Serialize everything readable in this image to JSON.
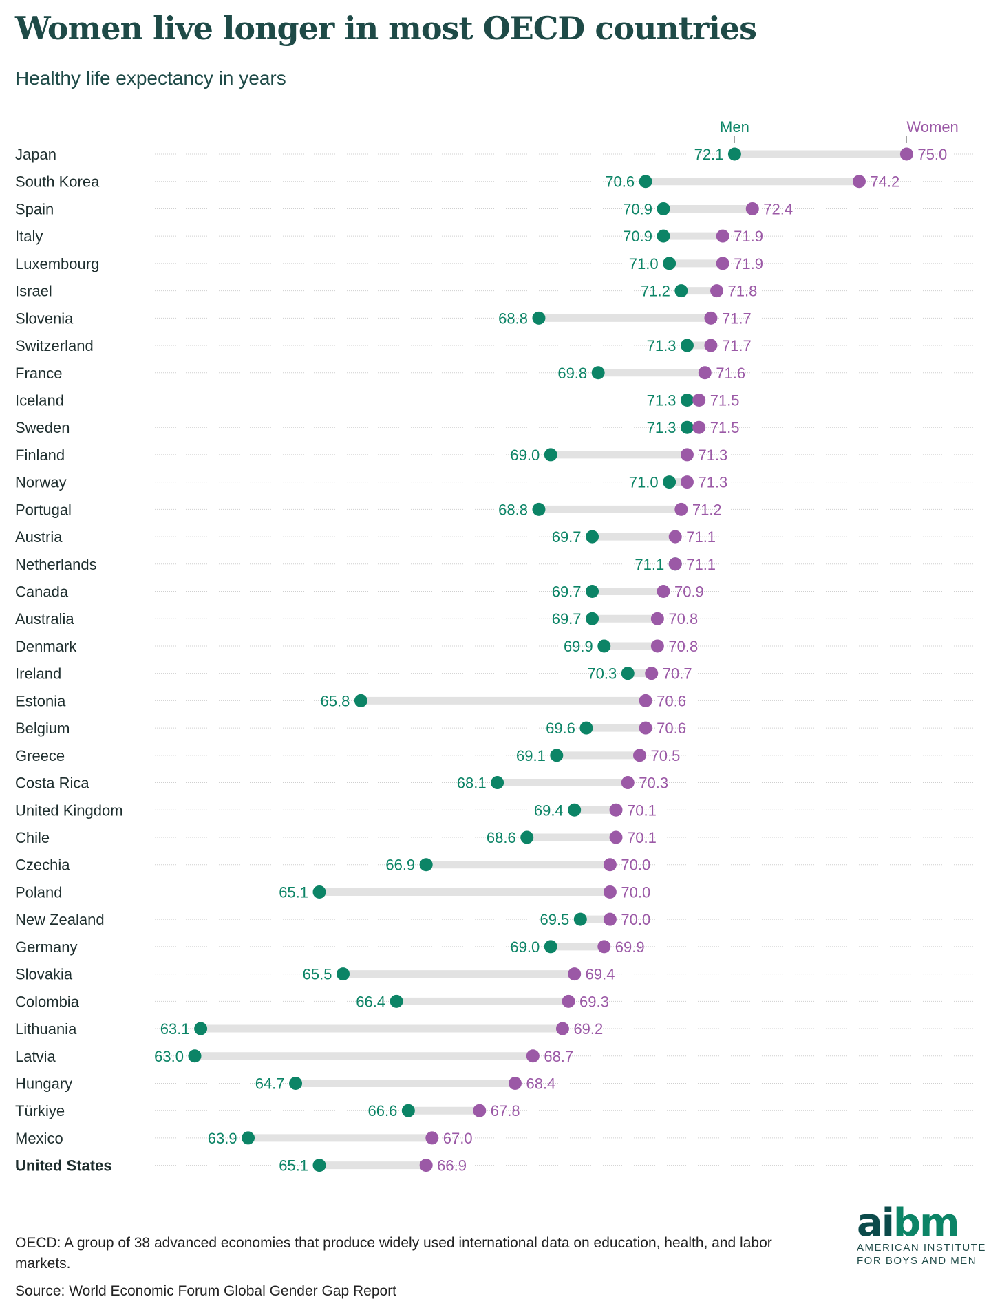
{
  "title": "Women live longer in most OECD countries",
  "subtitle": "Healthy life expectancy in years",
  "colors": {
    "men": "#0c8466",
    "women": "#9b59a6",
    "bar": "#e2e2e2",
    "text": "#1e4a47"
  },
  "chart_data": {
    "type": "dumbbell",
    "title": "Women live longer in most OECD countries",
    "ylabel": "Healthy life expectancy in years",
    "legend": [
      "Men",
      "Women"
    ],
    "xlim": [
      63,
      75
    ],
    "categories": [
      "Japan",
      "South Korea",
      "Spain",
      "Italy",
      "Luxembourg",
      "Israel",
      "Slovenia",
      "Switzerland",
      "France",
      "Iceland",
      "Sweden",
      "Finland",
      "Norway",
      "Portugal",
      "Austria",
      "Netherlands",
      "Canada",
      "Australia",
      "Denmark",
      "Ireland",
      "Estonia",
      "Belgium",
      "Greece",
      "Costa Rica",
      "United Kingdom",
      "Chile",
      "Czechia",
      "Poland",
      "New Zealand",
      "Germany",
      "Slovakia",
      "Colombia",
      "Lithuania",
      "Latvia",
      "Hungary",
      "Türkiye",
      "Mexico",
      "United States"
    ],
    "series": [
      {
        "name": "Men",
        "values": [
          72.1,
          70.6,
          70.9,
          70.9,
          71.0,
          71.2,
          68.8,
          71.3,
          69.8,
          71.3,
          71.3,
          69.0,
          71.0,
          68.8,
          69.7,
          71.1,
          69.7,
          69.7,
          69.9,
          70.3,
          65.8,
          69.6,
          69.1,
          68.1,
          69.4,
          68.6,
          66.9,
          65.1,
          69.5,
          69.0,
          65.5,
          66.4,
          63.1,
          63.0,
          64.7,
          66.6,
          63.9,
          65.1
        ]
      },
      {
        "name": "Women",
        "values": [
          75.0,
          74.2,
          72.4,
          71.9,
          71.9,
          71.8,
          71.7,
          71.7,
          71.6,
          71.5,
          71.5,
          71.3,
          71.3,
          71.2,
          71.1,
          71.1,
          70.9,
          70.8,
          70.8,
          70.7,
          70.6,
          70.6,
          70.5,
          70.3,
          70.1,
          70.1,
          70.0,
          70.0,
          70.0,
          69.9,
          69.4,
          69.3,
          69.2,
          68.7,
          68.4,
          67.8,
          67.0,
          66.9
        ]
      }
    ],
    "highlight": "United States"
  },
  "footer": {
    "note": "OECD: A group of 38 advanced economies that produce widely used international data on education, health, and labor markets.",
    "source": "Source: World Economic Forum Global Gender Gap Report"
  },
  "logo": {
    "mark": "aibm",
    "line1": "AMERICAN INSTITUTE",
    "line2": "FOR BOYS AND MEN"
  }
}
